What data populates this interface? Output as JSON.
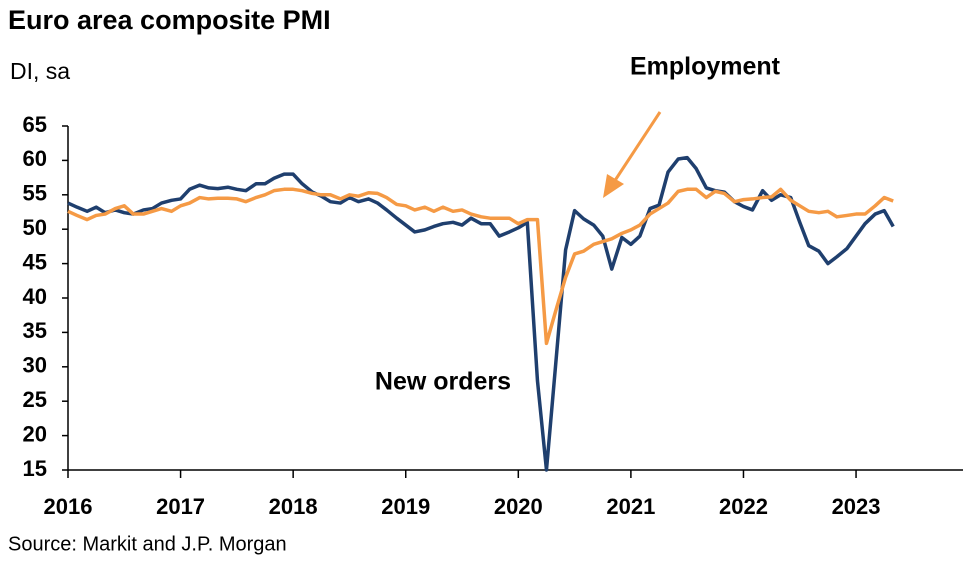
{
  "chart_data": {
    "type": "line",
    "title": "Euro area composite PMI",
    "subtitle": "DI, sa",
    "source": "Source: Markit and J.P. Morgan",
    "x": [
      2016,
      2016.08,
      2016.17,
      2016.25,
      2016.33,
      2016.42,
      2016.5,
      2016.58,
      2016.67,
      2016.75,
      2016.83,
      2016.92,
      2017,
      2017.08,
      2017.17,
      2017.25,
      2017.33,
      2017.42,
      2017.5,
      2017.58,
      2017.67,
      2017.75,
      2017.83,
      2017.92,
      2018,
      2018.08,
      2018.17,
      2018.25,
      2018.33,
      2018.42,
      2018.5,
      2018.58,
      2018.67,
      2018.75,
      2018.83,
      2018.92,
      2019,
      2019.08,
      2019.17,
      2019.25,
      2019.33,
      2019.42,
      2019.5,
      2019.58,
      2019.67,
      2019.75,
      2019.83,
      2019.92,
      2020,
      2020.08,
      2020.17,
      2020.25,
      2020.33,
      2020.42,
      2020.5,
      2020.58,
      2020.67,
      2020.75,
      2020.83,
      2020.92,
      2021,
      2021.08,
      2021.17,
      2021.25,
      2021.33,
      2021.42,
      2021.5,
      2021.58,
      2021.67,
      2021.75,
      2021.83,
      2021.92,
      2022,
      2022.08,
      2022.17,
      2022.25,
      2022.33,
      2022.42,
      2022.5,
      2022.58,
      2022.67,
      2022.75,
      2022.83,
      2022.92,
      2023,
      2023.08,
      2023.17,
      2023.25,
      2023.33
    ],
    "series": [
      {
        "name": "New orders",
        "color": "#1f3f6e",
        "values": [
          53.8,
          53.2,
          52.6,
          53.2,
          52.4,
          52.8,
          52.4,
          52.2,
          52.8,
          53,
          53.8,
          54.2,
          54.4,
          55.8,
          56.4,
          56,
          55.9,
          56.1,
          55.8,
          55.6,
          56.6,
          56.6,
          57.4,
          58,
          58,
          56.6,
          55.4,
          54.8,
          54,
          53.8,
          54.6,
          54,
          54.4,
          53.8,
          52.8,
          51.6,
          50.6,
          49.6,
          49.9,
          50.4,
          50.8,
          51,
          50.6,
          51.6,
          50.8,
          50.8,
          49,
          49.6,
          50.2,
          51,
          28,
          15,
          30,
          47,
          52.7,
          51.5,
          50.6,
          49,
          44.2,
          48.8,
          47.8,
          49,
          53,
          53.5,
          58.3,
          60.2,
          60.4,
          58.8,
          56,
          55.6,
          55.4,
          54,
          53.3,
          52.8,
          55.6,
          54.2,
          55,
          54.6,
          51,
          47.6,
          46.8,
          45,
          46,
          47.2,
          49,
          50.8,
          52.2,
          52.7,
          50.4
        ]
      },
      {
        "name": "Employment",
        "color": "#f59a45",
        "values": [
          52.6,
          52,
          51.4,
          52,
          52.2,
          53,
          53.4,
          52.2,
          52.2,
          52.6,
          53,
          52.6,
          53.4,
          53.8,
          54.6,
          54.4,
          54.5,
          54.5,
          54.4,
          54,
          54.6,
          55,
          55.6,
          55.8,
          55.8,
          55.6,
          55.2,
          55,
          55,
          54.4,
          55,
          54.8,
          55.3,
          55.2,
          54.6,
          53.6,
          53.4,
          52.8,
          53.2,
          52.6,
          53.2,
          52.6,
          52.8,
          52.2,
          51.8,
          51.6,
          51.6,
          51.6,
          50.8,
          51.4,
          51.4,
          33.4,
          38,
          43,
          46.4,
          46.8,
          47.8,
          48.2,
          48.6,
          49.4,
          49.9,
          50.6,
          52.2,
          53,
          53.8,
          55.5,
          55.8,
          55.8,
          54.6,
          55.5,
          55.2,
          54,
          54.3,
          54.4,
          54.6,
          54.7,
          55.8,
          54.2,
          53.4,
          52.6,
          52.4,
          52.6,
          51.8,
          52,
          52.2,
          52.2,
          53.4,
          54.6,
          54.1
        ]
      }
    ],
    "xlim": [
      2016,
      2023.95
    ],
    "xticks": [
      2016,
      2017,
      2018,
      2019,
      2020,
      2021,
      2022,
      2023
    ],
    "ylim": [
      15,
      65
    ],
    "yticks": [
      15,
      20,
      25,
      30,
      35,
      40,
      45,
      50,
      55,
      60,
      65
    ]
  }
}
